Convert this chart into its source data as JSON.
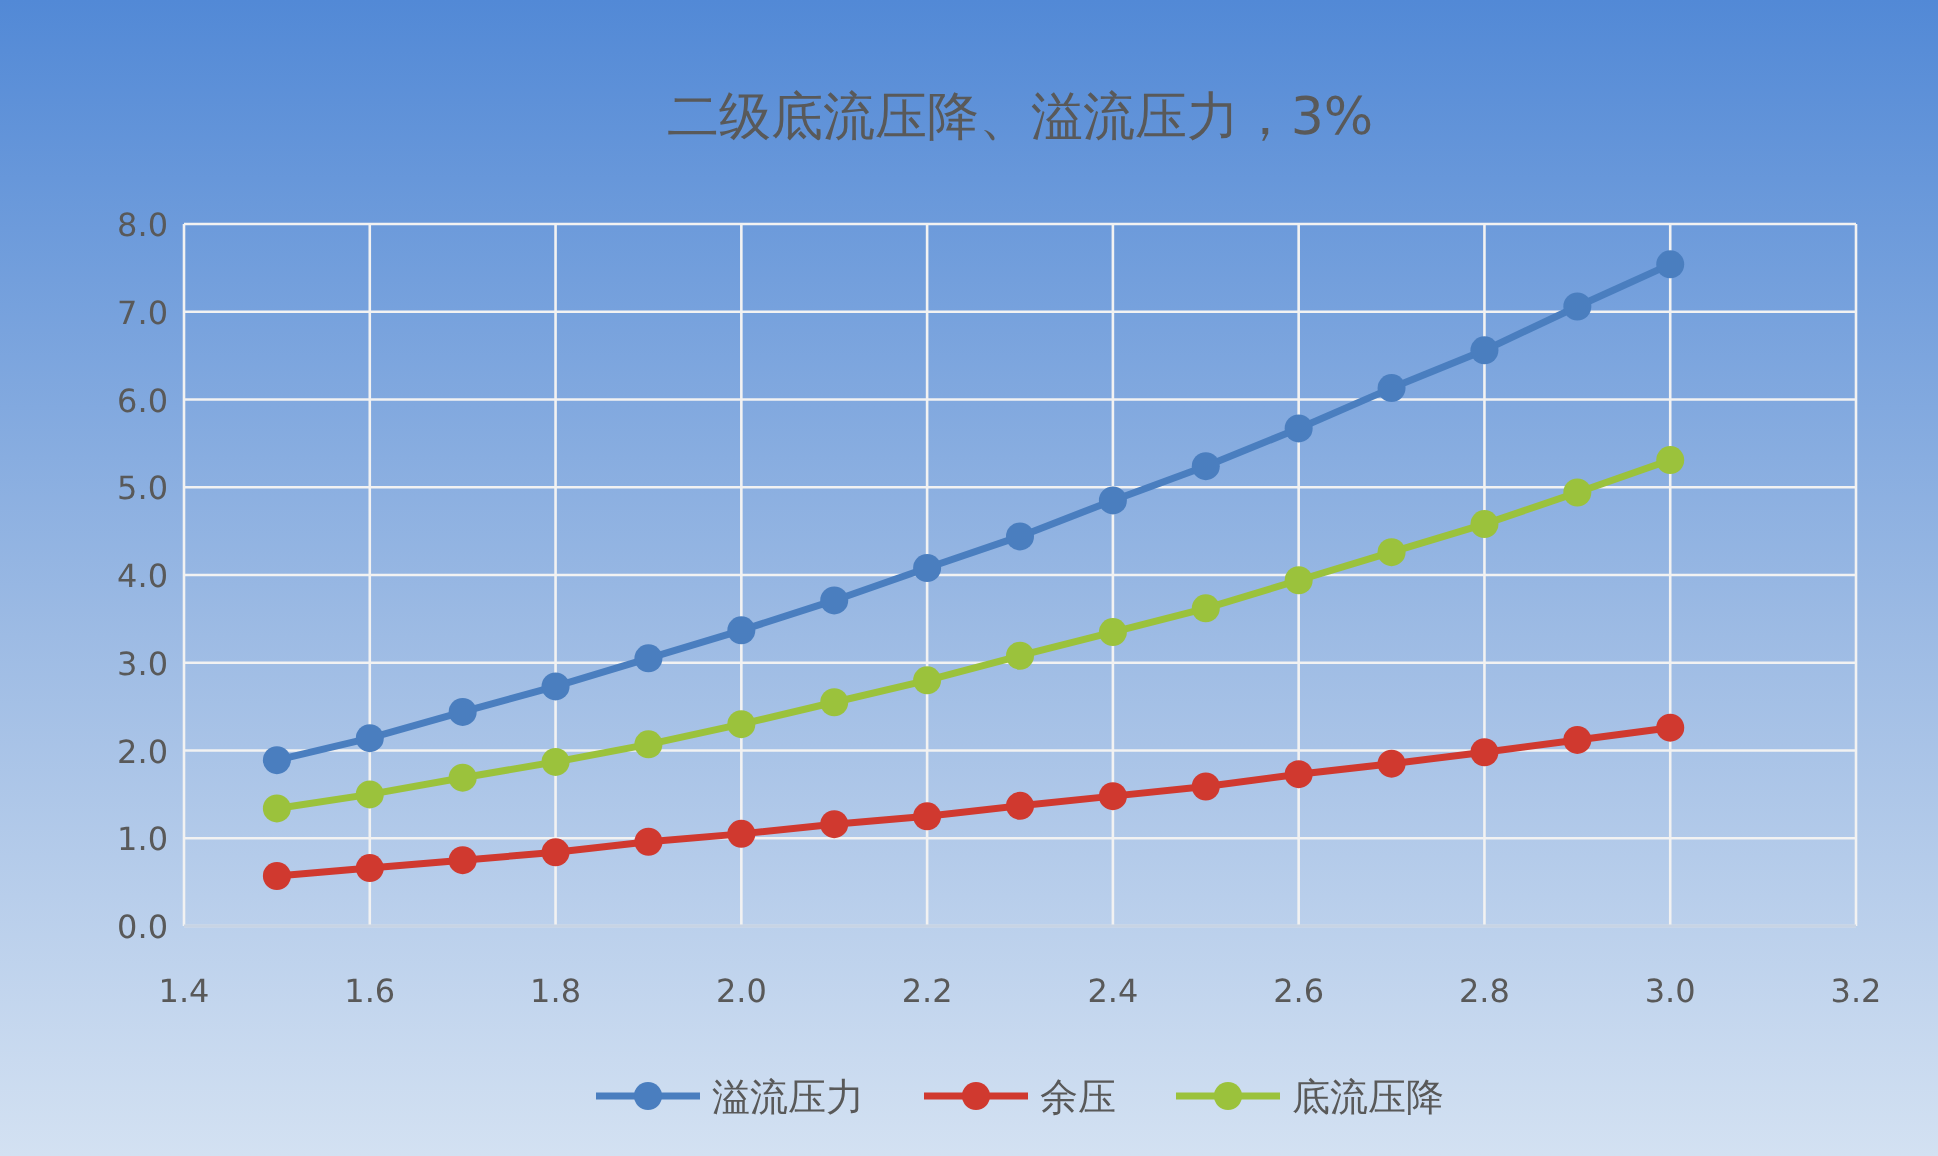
{
  "chart_data": {
    "type": "line",
    "title": "二级底流压降、溢流压力，3%",
    "x": [
      1.5,
      1.6,
      1.7,
      1.8,
      1.9,
      2.0,
      2.1,
      2.2,
      2.3,
      2.4,
      2.5,
      2.6,
      2.7,
      2.8,
      2.9,
      3.0
    ],
    "series": [
      {
        "name": "溢流压力",
        "color": "#4a7ebf",
        "values": [
          1.89,
          2.14,
          2.44,
          2.73,
          3.05,
          3.37,
          3.71,
          4.08,
          4.44,
          4.85,
          5.24,
          5.67,
          6.13,
          6.56,
          7.06,
          7.54
        ]
      },
      {
        "name": "余压",
        "color": "#d0392f",
        "values": [
          0.57,
          0.66,
          0.75,
          0.84,
          0.96,
          1.05,
          1.16,
          1.25,
          1.37,
          1.48,
          1.59,
          1.73,
          1.85,
          1.98,
          2.12,
          2.26
        ]
      },
      {
        "name": "底流压降",
        "color": "#9bc23c",
        "values": [
          1.34,
          1.5,
          1.69,
          1.87,
          2.07,
          2.3,
          2.55,
          2.8,
          3.08,
          3.35,
          3.62,
          3.94,
          4.26,
          4.58,
          4.94,
          5.31
        ]
      }
    ],
    "xlim": [
      1.4,
      3.2
    ],
    "xticks": [
      {
        "value": 1.4,
        "label": "1.4"
      },
      {
        "value": 1.6,
        "label": "1.6"
      },
      {
        "value": 1.8,
        "label": "1.8"
      },
      {
        "value": 2.0,
        "label": "2.0"
      },
      {
        "value": 2.2,
        "label": "2.2"
      },
      {
        "value": 2.4,
        "label": "2.4"
      },
      {
        "value": 2.6,
        "label": "2.6"
      },
      {
        "value": 2.8,
        "label": "2.8"
      },
      {
        "value": 3.0,
        "label": "3.0"
      },
      {
        "value": 3.2,
        "label": "3.2"
      }
    ],
    "ylim": [
      0,
      8
    ],
    "yticks": [
      {
        "value": 0,
        "label": "0.0"
      },
      {
        "value": 1,
        "label": "1.0"
      },
      {
        "value": 2,
        "label": "2.0"
      },
      {
        "value": 3,
        "label": "3.0"
      },
      {
        "value": 4,
        "label": "4.0"
      },
      {
        "value": 5,
        "label": "5.0"
      },
      {
        "value": 6,
        "label": "6.0"
      },
      {
        "value": 7,
        "label": "7.0"
      },
      {
        "value": 8,
        "label": "8.0"
      }
    ],
    "grid": true,
    "legend": "bottom",
    "marker": "circle",
    "line_style": "solid"
  }
}
